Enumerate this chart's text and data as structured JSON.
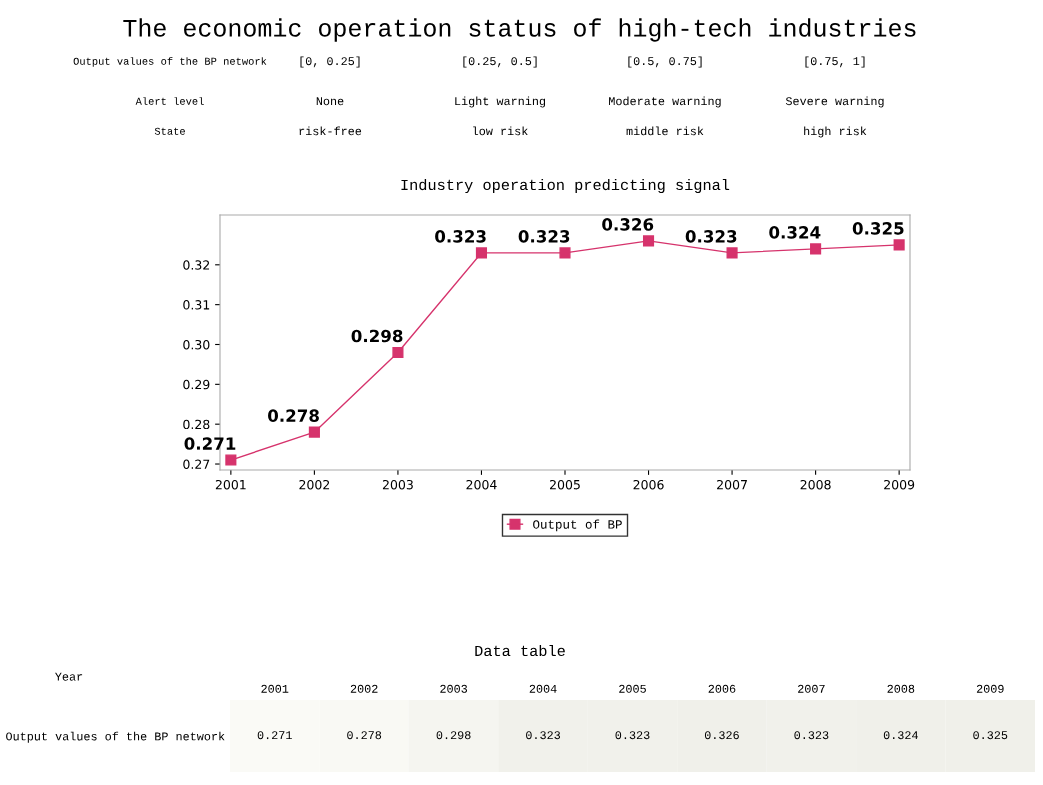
{
  "chart_data": [
    {
      "type": "other",
      "title": "The economic operation status of high-tech industries",
      "annotations": [
        "Output values of the BP network",
        "[0, 0.25]",
        "[0.25, 0.5]",
        "[0.5, 0.75]",
        "[0.75, 1]",
        "Alert level",
        "None",
        "Light warning",
        "Moderate warning",
        "Severe warning",
        "State",
        "risk-free",
        "low risk",
        "middle risk",
        "high risk"
      ]
    },
    {
      "type": "line",
      "title": "Industry operation predicting signal",
      "categories": [
        "2001",
        "2002",
        "2003",
        "2004",
        "2005",
        "2006",
        "2007",
        "2008",
        "2009"
      ],
      "series": [
        {
          "name": "Output of BP",
          "color": "#d6336c",
          "values": [
            0.271,
            0.278,
            0.298,
            0.323,
            0.323,
            0.326,
            0.323,
            0.324,
            0.325
          ]
        }
      ],
      "ylim": [
        0.2685,
        0.3325
      ],
      "yticks": [
        0.27,
        0.28,
        0.29,
        {
          "value": 0.3,
          "label": "0.30"
        },
        0.31,
        0.32
      ],
      "marker": "square",
      "line_style": "solid",
      "legend": "bottom",
      "data_labels": true
    },
    {
      "type": "heatmap",
      "title": "Data table",
      "xlabel": "Year",
      "categories": [
        "2001",
        "2002",
        "2003",
        "2004",
        "2005",
        "2006",
        "2007",
        "2008",
        "2009"
      ],
      "y_categories": [
        "Output values of the BP network"
      ],
      "cells": [
        [
          0.271,
          0.278,
          0.298,
          0.323,
          0.323,
          0.326,
          0.323,
          0.324,
          0.325
        ]
      ],
      "data_labels": true
    }
  ]
}
